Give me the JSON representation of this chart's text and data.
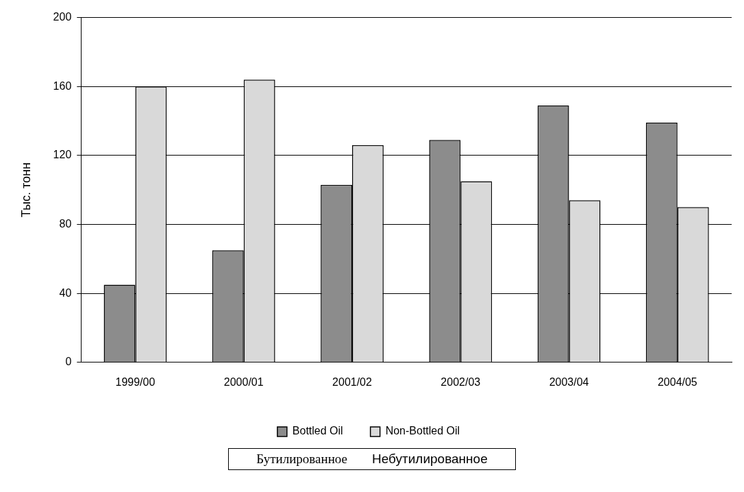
{
  "chart_data": {
    "type": "bar",
    "ylabel": "Тыс. тонн",
    "categories": [
      "1999/00",
      "2000/01",
      "2001/02",
      "2002/03",
      "2003/04",
      "2004/05"
    ],
    "series": [
      {
        "name": "Bottled Oil",
        "color": "#8c8c8c",
        "values": [
          45,
          65,
          103,
          129,
          149,
          139
        ]
      },
      {
        "name": "Non-Bottled Oil",
        "color": "#d9d9d9",
        "values": [
          160,
          164,
          126,
          105,
          94,
          90
        ]
      }
    ],
    "ylim": [
      0,
      200
    ],
    "yticks": [
      0,
      40,
      80,
      120,
      160,
      200
    ],
    "grid": "y",
    "legend": "bottom",
    "annotations": [
      "Бутилированное",
      "Небутилированное"
    ]
  }
}
